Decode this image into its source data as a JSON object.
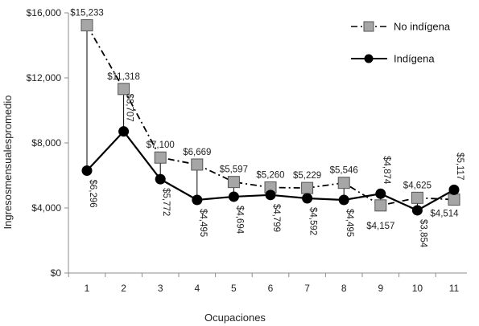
{
  "chart_data": {
    "type": "line",
    "title": "",
    "xlabel": "Ocupaciones",
    "ylabel": "Ingresosmensualespromedio",
    "categories": [
      "1",
      "2",
      "3",
      "4",
      "5",
      "6",
      "7",
      "8",
      "9",
      "10",
      "11"
    ],
    "ylim": [
      0,
      16000
    ],
    "y_ticks": [
      "$0",
      "$4,000",
      "$8,000",
      "$12,000",
      "$16,000"
    ],
    "y_tick_values": [
      0,
      4000,
      8000,
      12000,
      16000
    ],
    "grid": false,
    "legend_position": "top-right",
    "series": [
      {
        "name": "No indígena",
        "values": [
          15233,
          11318,
          7100,
          6669,
          5597,
          5260,
          5229,
          5546,
          4157,
          4625,
          4514
        ],
        "labels": [
          "$15,233",
          "$11,318",
          "$7,100",
          "$6,669",
          "$5,597",
          "$5,260",
          "$5,229",
          "$5,546",
          "$4,157",
          "$4,625",
          "$4,514"
        ],
        "color": "#a6a6a6",
        "line_style": "dash-dot",
        "marker": "square"
      },
      {
        "name": "Indígena",
        "values": [
          6296,
          8707,
          5772,
          4495,
          4694,
          4799,
          4592,
          4495,
          4874,
          3854,
          5117
        ],
        "labels": [
          "$6,296",
          "$8,707",
          "$5,772",
          "$4,495",
          "$4,694",
          "$4,799",
          "$4,592",
          "$4,495",
          "$4,874",
          "$3,854",
          "$5,117"
        ],
        "color": "#000000",
        "line_style": "solid",
        "marker": "circle"
      }
    ]
  }
}
